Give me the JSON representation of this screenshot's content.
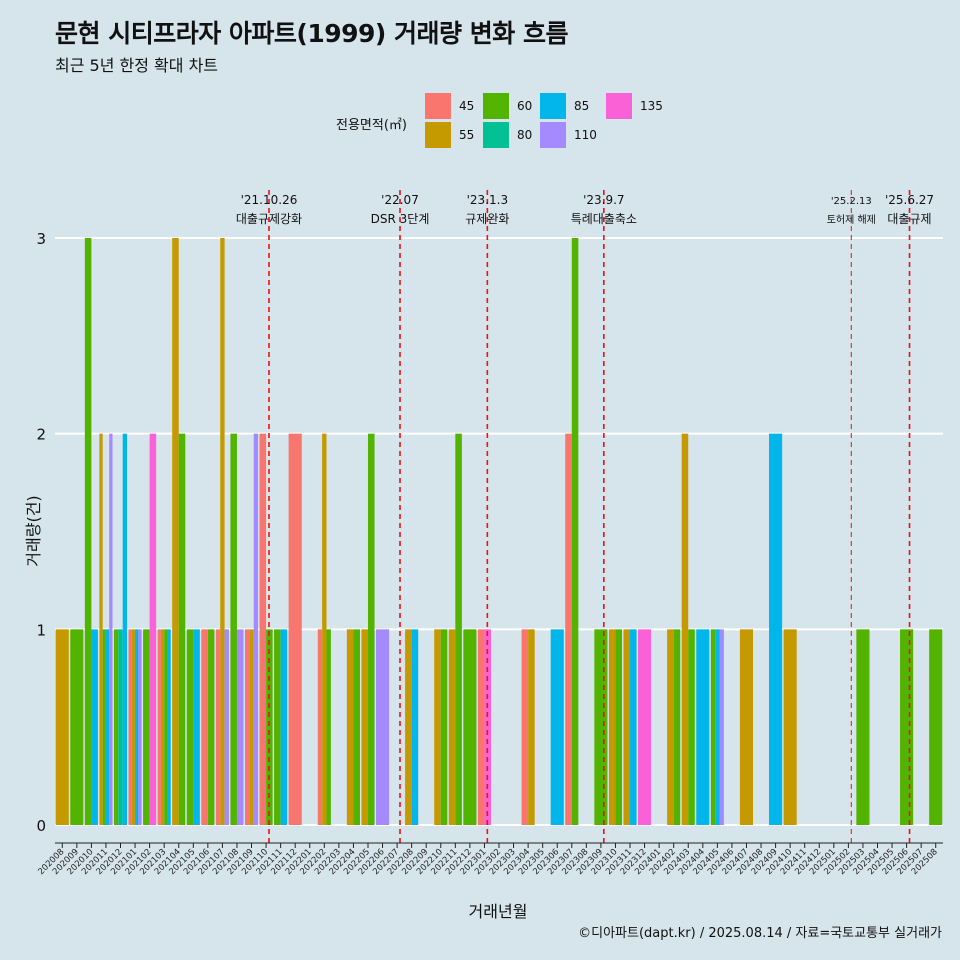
{
  "page": {
    "title": "문현 시티프라자 아파트(1999) 거래량 변화 흐름",
    "subtitle": "최근 5년 한정 확대 차트",
    "source": "©디아파트(dapt.kr) / 2025.08.14 / 자료=국토교통부 실거래가"
  },
  "legend": {
    "title": "전용면적(㎡)",
    "items": [
      {
        "label": "45",
        "color": "#f8766d"
      },
      {
        "label": "55",
        "color": "#c49a00"
      },
      {
        "label": "60",
        "color": "#53b400"
      },
      {
        "label": "80",
        "color": "#00c094"
      },
      {
        "label": "85",
        "color": "#00b6eb"
      },
      {
        "label": "110",
        "color": "#a58aff"
      },
      {
        "label": "135",
        "color": "#fb61d7"
      }
    ]
  },
  "chart_data": {
    "type": "bar",
    "title": "문현 시티프라자 아파트(1999) 거래량 변화 흐름",
    "subtitle": "최근 5년 한정 확대 차트",
    "xlabel": "거래년월",
    "ylabel": "거래량(건)",
    "ylim": [
      0,
      3
    ],
    "yticks": [
      "0",
      "1",
      "2",
      "3"
    ],
    "grid": true,
    "legend_position": "top",
    "categories": [
      "202008",
      "202009",
      "202010",
      "202011",
      "202012",
      "202101",
      "202102",
      "202103",
      "202104",
      "202105",
      "202106",
      "202107",
      "202108",
      "202109",
      "202110",
      "202111",
      "202112",
      "202201",
      "202202",
      "202203",
      "202204",
      "202205",
      "202206",
      "202207",
      "202208",
      "202209",
      "202210",
      "202211",
      "202212",
      "202301",
      "202302",
      "202303",
      "202304",
      "202305",
      "202306",
      "202307",
      "202308",
      "202309",
      "202310",
      "202311",
      "202312",
      "202401",
      "202402",
      "202403",
      "202404",
      "202405",
      "202406",
      "202407",
      "202408",
      "202409",
      "202410",
      "202411",
      "202412",
      "202501",
      "202502",
      "202503",
      "202504",
      "202505",
      "202506",
      "202507",
      "202508"
    ],
    "series": [
      {
        "name": "45",
        "values": [
          0,
          0,
          0,
          0,
          0,
          1,
          0,
          1,
          0,
          0,
          1,
          1,
          0,
          1,
          2,
          0,
          2,
          0,
          1,
          0,
          0,
          0,
          0,
          0,
          0,
          0,
          0,
          0,
          0,
          1,
          0,
          0,
          1,
          0,
          0,
          2,
          0,
          0,
          0,
          0,
          0,
          0,
          0,
          0,
          0,
          0,
          0,
          0,
          0,
          0,
          0,
          0,
          0,
          0,
          0,
          0,
          0,
          0,
          0,
          0,
          0
        ]
      },
      {
        "name": "55",
        "values": [
          1,
          0,
          0,
          2,
          0,
          1,
          0,
          1,
          3,
          0,
          0,
          3,
          0,
          1,
          0,
          0,
          0,
          0,
          2,
          0,
          1,
          1,
          0,
          0,
          1,
          0,
          1,
          1,
          0,
          0,
          0,
          0,
          1,
          0,
          0,
          0,
          0,
          0,
          1,
          1,
          0,
          0,
          1,
          2,
          0,
          0,
          0,
          1,
          0,
          0,
          1,
          0,
          0,
          0,
          0,
          0,
          0,
          0,
          0,
          0,
          0
        ]
      },
      {
        "name": "60",
        "values": [
          0,
          1,
          3,
          1,
          1,
          0,
          1,
          1,
          2,
          1,
          1,
          0,
          2,
          0,
          1,
          1,
          0,
          0,
          1,
          0,
          1,
          2,
          0,
          0,
          0,
          0,
          1,
          2,
          1,
          0,
          0,
          0,
          0,
          0,
          0,
          3,
          0,
          1,
          1,
          0,
          0,
          0,
          1,
          1,
          0,
          1,
          0,
          0,
          0,
          0,
          0,
          0,
          0,
          0,
          0,
          1,
          0,
          0,
          1,
          0,
          1
        ]
      },
      {
        "name": "80",
        "values": [
          0,
          0,
          0,
          0,
          1,
          0,
          0,
          0,
          0,
          0,
          0,
          0,
          0,
          0,
          0,
          0,
          0,
          0,
          0,
          0,
          0,
          0,
          0,
          0,
          0,
          0,
          0,
          0,
          0,
          0,
          0,
          0,
          0,
          0,
          0,
          0,
          0,
          0,
          0,
          0,
          0,
          0,
          0,
          0,
          0,
          0,
          0,
          0,
          0,
          0,
          0,
          0,
          0,
          0,
          0,
          0,
          0,
          0,
          0,
          0,
          0
        ]
      },
      {
        "name": "85",
        "values": [
          0,
          0,
          1,
          1,
          2,
          1,
          0,
          1,
          0,
          1,
          0,
          0,
          0,
          0,
          0,
          1,
          0,
          0,
          0,
          0,
          0,
          0,
          0,
          0,
          1,
          0,
          0,
          0,
          0,
          0,
          0,
          0,
          0,
          0,
          1,
          0,
          0,
          0,
          0,
          1,
          0,
          0,
          0,
          0,
          1,
          1,
          0,
          0,
          0,
          2,
          0,
          0,
          0,
          0,
          0,
          0,
          0,
          0,
          0,
          0,
          0
        ]
      },
      {
        "name": "110",
        "values": [
          0,
          0,
          0,
          2,
          0,
          1,
          0,
          0,
          0,
          0,
          0,
          1,
          1,
          2,
          0,
          0,
          0,
          0,
          0,
          0,
          0,
          0,
          1,
          0,
          0,
          0,
          0,
          0,
          0,
          0,
          0,
          0,
          0,
          0,
          0,
          0,
          0,
          0,
          0,
          0,
          0,
          0,
          0,
          0,
          0,
          1,
          0,
          0,
          0,
          0,
          0,
          0,
          0,
          0,
          0,
          0,
          0,
          0,
          0,
          0,
          0
        ]
      },
      {
        "name": "135",
        "values": [
          0,
          0,
          0,
          0,
          0,
          0,
          2,
          0,
          0,
          0,
          0,
          0,
          0,
          0,
          0,
          0,
          0,
          0,
          0,
          0,
          0,
          0,
          0,
          0,
          0,
          0,
          0,
          0,
          0,
          1,
          0,
          0,
          0,
          0,
          0,
          0,
          0,
          0,
          0,
          0,
          1,
          0,
          0,
          0,
          0,
          0,
          0,
          0,
          0,
          0,
          0,
          0,
          0,
          0,
          0,
          0,
          0,
          0,
          0,
          0,
          0
        ]
      }
    ],
    "annotations": [
      {
        "at": 14.7,
        "date": "'21.10.26",
        "label": "대출규제강화"
      },
      {
        "at": 23.7,
        "date": "'22.07",
        "label": "DSR 3단계"
      },
      {
        "at": 29.7,
        "date": "'23.1.3",
        "label": "규제완화"
      },
      {
        "at": 37.7,
        "date": "'23.9.7",
        "label": "특례대출축소"
      },
      {
        "at": 54.7,
        "date": "'25.2.13",
        "label": "토허제 해제",
        "small": true
      },
      {
        "at": 58.7,
        "date": "'25.6.27",
        "label": "대출규제"
      }
    ]
  }
}
